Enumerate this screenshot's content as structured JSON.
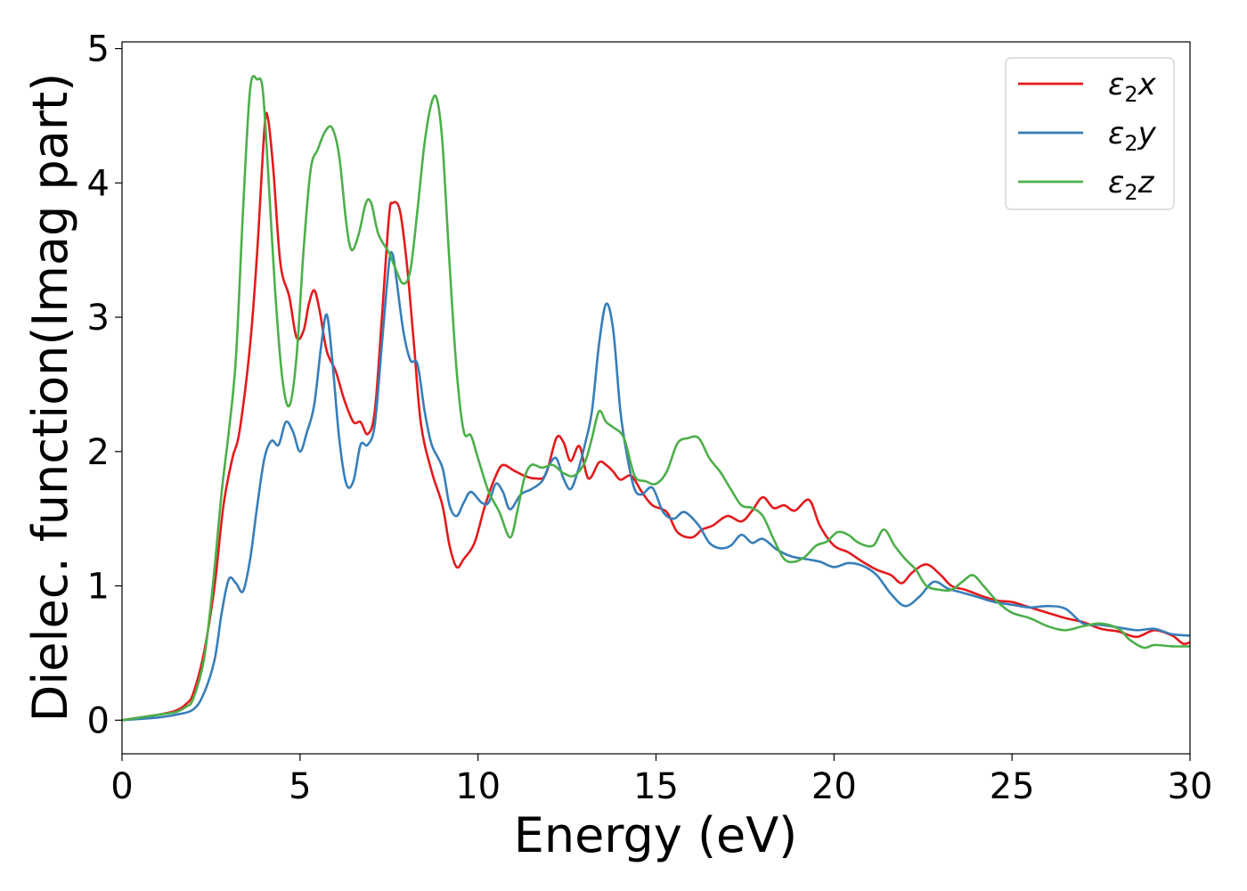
{
  "chart_data": {
    "type": "line",
    "xlabel": "Energy (eV)",
    "ylabel": "Dielec. function(Imag part)",
    "xlim": [
      0,
      30
    ],
    "ylim": [
      -0.25,
      5.05
    ],
    "xticks": [
      0,
      5,
      10,
      15,
      20,
      25,
      30
    ],
    "xtick_labels": [
      "0",
      "5",
      "10",
      "15",
      "20",
      "25",
      "30"
    ],
    "yticks": [
      0,
      1,
      2,
      3,
      4,
      5
    ],
    "ytick_labels": [
      "0",
      "1",
      "2",
      "3",
      "4",
      "5"
    ],
    "grid": false,
    "legend_position": "top-right",
    "series": [
      {
        "name": "ε₂x",
        "legend_label": {
          "base": "ε",
          "sub": "2",
          "suffix": "x"
        },
        "color": "#e41a1c",
        "points": [
          [
            0,
            0
          ],
          [
            1,
            0.04
          ],
          [
            1.5,
            0.07
          ],
          [
            1.8,
            0.12
          ],
          [
            2.0,
            0.2
          ],
          [
            2.3,
            0.5
          ],
          [
            2.6,
            1.0
          ],
          [
            2.85,
            1.6
          ],
          [
            3.1,
            1.95
          ],
          [
            3.3,
            2.15
          ],
          [
            3.6,
            2.8
          ],
          [
            3.8,
            3.5
          ],
          [
            4.0,
            4.4
          ],
          [
            4.1,
            4.48
          ],
          [
            4.25,
            4.1
          ],
          [
            4.45,
            3.4
          ],
          [
            4.7,
            3.15
          ],
          [
            4.9,
            2.85
          ],
          [
            5.1,
            2.9
          ],
          [
            5.25,
            3.1
          ],
          [
            5.4,
            3.2
          ],
          [
            5.55,
            3.05
          ],
          [
            5.75,
            2.75
          ],
          [
            6.0,
            2.6
          ],
          [
            6.25,
            2.38
          ],
          [
            6.5,
            2.22
          ],
          [
            6.7,
            2.22
          ],
          [
            6.9,
            2.13
          ],
          [
            7.1,
            2.3
          ],
          [
            7.3,
            3.0
          ],
          [
            7.5,
            3.75
          ],
          [
            7.6,
            3.85
          ],
          [
            7.8,
            3.8
          ],
          [
            8.0,
            3.4
          ],
          [
            8.2,
            2.8
          ],
          [
            8.4,
            2.2
          ],
          [
            8.7,
            1.85
          ],
          [
            9.0,
            1.6
          ],
          [
            9.2,
            1.3
          ],
          [
            9.4,
            1.14
          ],
          [
            9.6,
            1.2
          ],
          [
            9.9,
            1.32
          ],
          [
            10.2,
            1.6
          ],
          [
            10.5,
            1.82
          ],
          [
            10.7,
            1.9
          ],
          [
            11.0,
            1.86
          ],
          [
            11.3,
            1.82
          ],
          [
            11.6,
            1.8
          ],
          [
            11.9,
            1.83
          ],
          [
            12.2,
            2.1
          ],
          [
            12.4,
            2.07
          ],
          [
            12.6,
            1.93
          ],
          [
            12.85,
            2.04
          ],
          [
            13.1,
            1.8
          ],
          [
            13.4,
            1.92
          ],
          [
            13.6,
            1.9
          ],
          [
            13.8,
            1.85
          ],
          [
            14.0,
            1.79
          ],
          [
            14.3,
            1.82
          ],
          [
            14.6,
            1.7
          ],
          [
            14.9,
            1.6
          ],
          [
            15.3,
            1.55
          ],
          [
            15.6,
            1.4
          ],
          [
            16.0,
            1.36
          ],
          [
            16.3,
            1.42
          ],
          [
            16.6,
            1.45
          ],
          [
            17.0,
            1.52
          ],
          [
            17.4,
            1.48
          ],
          [
            17.7,
            1.56
          ],
          [
            18.0,
            1.66
          ],
          [
            18.3,
            1.58
          ],
          [
            18.6,
            1.6
          ],
          [
            18.9,
            1.56
          ],
          [
            19.3,
            1.64
          ],
          [
            19.6,
            1.45
          ],
          [
            20.0,
            1.3
          ],
          [
            20.4,
            1.25
          ],
          [
            20.8,
            1.18
          ],
          [
            21.2,
            1.12
          ],
          [
            21.6,
            1.08
          ],
          [
            21.9,
            1.02
          ],
          [
            22.2,
            1.1
          ],
          [
            22.6,
            1.16
          ],
          [
            23.0,
            1.08
          ],
          [
            23.3,
            1.0
          ],
          [
            23.7,
            0.97
          ],
          [
            24.2,
            0.92
          ],
          [
            24.6,
            0.89
          ],
          [
            25.0,
            0.88
          ],
          [
            25.5,
            0.84
          ],
          [
            26.0,
            0.8
          ],
          [
            26.5,
            0.76
          ],
          [
            27.0,
            0.73
          ],
          [
            27.5,
            0.68
          ],
          [
            28.0,
            0.66
          ],
          [
            28.5,
            0.62
          ],
          [
            29.0,
            0.67
          ],
          [
            29.5,
            0.63
          ],
          [
            29.8,
            0.57
          ],
          [
            30.0,
            0.58
          ]
        ]
      },
      {
        "name": "ε₂y",
        "legend_label": {
          "base": "ε",
          "sub": "2",
          "suffix": "y"
        },
        "color": "#377eb8",
        "points": [
          [
            0,
            0
          ],
          [
            1,
            0.02
          ],
          [
            1.5,
            0.04
          ],
          [
            2.0,
            0.08
          ],
          [
            2.3,
            0.2
          ],
          [
            2.6,
            0.45
          ],
          [
            2.8,
            0.8
          ],
          [
            3.0,
            1.05
          ],
          [
            3.2,
            1.02
          ],
          [
            3.4,
            0.96
          ],
          [
            3.6,
            1.2
          ],
          [
            3.8,
            1.6
          ],
          [
            4.0,
            1.95
          ],
          [
            4.2,
            2.08
          ],
          [
            4.4,
            2.05
          ],
          [
            4.6,
            2.22
          ],
          [
            4.8,
            2.15
          ],
          [
            5.0,
            2.0
          ],
          [
            5.2,
            2.15
          ],
          [
            5.4,
            2.35
          ],
          [
            5.6,
            2.8
          ],
          [
            5.75,
            3.02
          ],
          [
            5.9,
            2.7
          ],
          [
            6.1,
            2.1
          ],
          [
            6.3,
            1.76
          ],
          [
            6.5,
            1.78
          ],
          [
            6.7,
            2.05
          ],
          [
            6.9,
            2.05
          ],
          [
            7.1,
            2.2
          ],
          [
            7.3,
            2.8
          ],
          [
            7.5,
            3.4
          ],
          [
            7.6,
            3.47
          ],
          [
            7.7,
            3.3
          ],
          [
            7.9,
            2.9
          ],
          [
            8.1,
            2.68
          ],
          [
            8.3,
            2.65
          ],
          [
            8.5,
            2.3
          ],
          [
            8.7,
            2.05
          ],
          [
            9.0,
            1.88
          ],
          [
            9.2,
            1.6
          ],
          [
            9.4,
            1.52
          ],
          [
            9.6,
            1.62
          ],
          [
            9.8,
            1.7
          ],
          [
            10.1,
            1.62
          ],
          [
            10.3,
            1.62
          ],
          [
            10.5,
            1.76
          ],
          [
            10.7,
            1.7
          ],
          [
            10.9,
            1.57
          ],
          [
            11.2,
            1.68
          ],
          [
            11.5,
            1.72
          ],
          [
            11.8,
            1.78
          ],
          [
            12.0,
            1.9
          ],
          [
            12.2,
            1.95
          ],
          [
            12.4,
            1.8
          ],
          [
            12.6,
            1.72
          ],
          [
            12.8,
            1.85
          ],
          [
            13.0,
            2.05
          ],
          [
            13.2,
            2.3
          ],
          [
            13.4,
            2.8
          ],
          [
            13.6,
            3.1
          ],
          [
            13.8,
            2.9
          ],
          [
            14.0,
            2.3
          ],
          [
            14.2,
            1.95
          ],
          [
            14.4,
            1.72
          ],
          [
            14.6,
            1.68
          ],
          [
            14.9,
            1.73
          ],
          [
            15.2,
            1.55
          ],
          [
            15.5,
            1.5
          ],
          [
            15.8,
            1.55
          ],
          [
            16.2,
            1.45
          ],
          [
            16.5,
            1.32
          ],
          [
            16.8,
            1.28
          ],
          [
            17.1,
            1.3
          ],
          [
            17.4,
            1.38
          ],
          [
            17.7,
            1.32
          ],
          [
            18.0,
            1.35
          ],
          [
            18.4,
            1.27
          ],
          [
            18.8,
            1.22
          ],
          [
            19.2,
            1.2
          ],
          [
            19.6,
            1.18
          ],
          [
            20.0,
            1.14
          ],
          [
            20.4,
            1.17
          ],
          [
            20.8,
            1.15
          ],
          [
            21.2,
            1.08
          ],
          [
            21.6,
            0.94
          ],
          [
            22.0,
            0.85
          ],
          [
            22.4,
            0.92
          ],
          [
            22.8,
            1.03
          ],
          [
            23.2,
            0.98
          ],
          [
            23.6,
            0.95
          ],
          [
            24.0,
            0.92
          ],
          [
            24.5,
            0.88
          ],
          [
            25.0,
            0.86
          ],
          [
            25.5,
            0.84
          ],
          [
            26.0,
            0.85
          ],
          [
            26.5,
            0.83
          ],
          [
            27.0,
            0.72
          ],
          [
            27.5,
            0.71
          ],
          [
            28.0,
            0.69
          ],
          [
            28.5,
            0.67
          ],
          [
            29.0,
            0.68
          ],
          [
            29.5,
            0.64
          ],
          [
            30.0,
            0.63
          ]
        ]
      },
      {
        "name": "ε₂z",
        "legend_label": {
          "base": "ε",
          "sub": "2",
          "suffix": "z"
        },
        "color": "#4daf4a",
        "points": [
          [
            0,
            0
          ],
          [
            1,
            0.04
          ],
          [
            1.5,
            0.06
          ],
          [
            1.8,
            0.1
          ],
          [
            2.0,
            0.16
          ],
          [
            2.3,
            0.45
          ],
          [
            2.55,
            1.0
          ],
          [
            2.8,
            1.7
          ],
          [
            3.0,
            2.15
          ],
          [
            3.2,
            2.7
          ],
          [
            3.4,
            3.8
          ],
          [
            3.6,
            4.7
          ],
          [
            3.8,
            4.77
          ],
          [
            3.95,
            4.7
          ],
          [
            4.1,
            4.1
          ],
          [
            4.3,
            3.2
          ],
          [
            4.5,
            2.55
          ],
          [
            4.7,
            2.34
          ],
          [
            4.9,
            2.7
          ],
          [
            5.1,
            3.5
          ],
          [
            5.3,
            4.1
          ],
          [
            5.5,
            4.25
          ],
          [
            5.7,
            4.38
          ],
          [
            5.9,
            4.41
          ],
          [
            6.1,
            4.2
          ],
          [
            6.3,
            3.7
          ],
          [
            6.45,
            3.5
          ],
          [
            6.65,
            3.62
          ],
          [
            6.85,
            3.85
          ],
          [
            7.0,
            3.85
          ],
          [
            7.2,
            3.62
          ],
          [
            7.5,
            3.48
          ],
          [
            7.7,
            3.35
          ],
          [
            7.9,
            3.25
          ],
          [
            8.1,
            3.35
          ],
          [
            8.3,
            3.8
          ],
          [
            8.5,
            4.3
          ],
          [
            8.7,
            4.6
          ],
          [
            8.85,
            4.62
          ],
          [
            9.0,
            4.3
          ],
          [
            9.2,
            3.4
          ],
          [
            9.4,
            2.6
          ],
          [
            9.6,
            2.15
          ],
          [
            9.8,
            2.12
          ],
          [
            10.0,
            1.95
          ],
          [
            10.3,
            1.7
          ],
          [
            10.6,
            1.55
          ],
          [
            10.9,
            1.36
          ],
          [
            11.1,
            1.55
          ],
          [
            11.3,
            1.8
          ],
          [
            11.5,
            1.9
          ],
          [
            11.8,
            1.88
          ],
          [
            12.1,
            1.9
          ],
          [
            12.4,
            1.84
          ],
          [
            12.7,
            1.82
          ],
          [
            13.0,
            1.92
          ],
          [
            13.2,
            2.1
          ],
          [
            13.4,
            2.3
          ],
          [
            13.6,
            2.22
          ],
          [
            13.8,
            2.18
          ],
          [
            14.1,
            2.1
          ],
          [
            14.4,
            1.82
          ],
          [
            14.7,
            1.78
          ],
          [
            15.0,
            1.76
          ],
          [
            15.3,
            1.85
          ],
          [
            15.6,
            2.06
          ],
          [
            15.9,
            2.1
          ],
          [
            16.2,
            2.1
          ],
          [
            16.5,
            1.95
          ],
          [
            16.8,
            1.85
          ],
          [
            17.1,
            1.72
          ],
          [
            17.4,
            1.6
          ],
          [
            17.7,
            1.58
          ],
          [
            18.0,
            1.52
          ],
          [
            18.3,
            1.35
          ],
          [
            18.6,
            1.2
          ],
          [
            18.9,
            1.18
          ],
          [
            19.2,
            1.22
          ],
          [
            19.5,
            1.3
          ],
          [
            19.8,
            1.33
          ],
          [
            20.1,
            1.4
          ],
          [
            20.4,
            1.38
          ],
          [
            20.7,
            1.32
          ],
          [
            21.1,
            1.3
          ],
          [
            21.4,
            1.42
          ],
          [
            21.7,
            1.3
          ],
          [
            22.0,
            1.2
          ],
          [
            22.3,
            1.12
          ],
          [
            22.6,
            1.0
          ],
          [
            23.0,
            0.97
          ],
          [
            23.3,
            0.97
          ],
          [
            23.6,
            1.03
          ],
          [
            23.9,
            1.08
          ],
          [
            24.2,
            1.0
          ],
          [
            24.6,
            0.88
          ],
          [
            25.0,
            0.8
          ],
          [
            25.5,
            0.76
          ],
          [
            26.0,
            0.7
          ],
          [
            26.5,
            0.67
          ],
          [
            27.0,
            0.7
          ],
          [
            27.5,
            0.72
          ],
          [
            28.0,
            0.68
          ],
          [
            28.3,
            0.6
          ],
          [
            28.7,
            0.54
          ],
          [
            29.0,
            0.56
          ],
          [
            29.5,
            0.55
          ],
          [
            30.0,
            0.55
          ]
        ]
      }
    ]
  }
}
